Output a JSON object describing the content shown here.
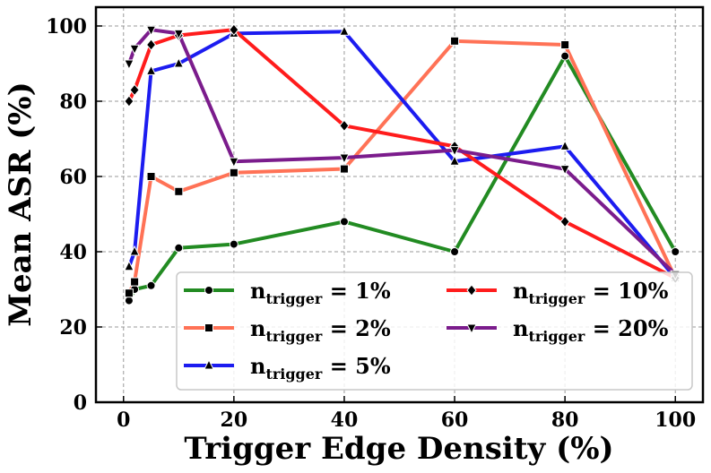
{
  "chart_data": {
    "type": "line",
    "title": "",
    "xlabel": "Trigger Edge Density (%)",
    "ylabel": "Mean ASR (%)",
    "xlim": [
      -5,
      105
    ],
    "ylim": [
      0,
      105
    ],
    "xticks": [
      "0",
      "20",
      "40",
      "60",
      "80",
      "100"
    ],
    "yticks": [
      "0",
      "20",
      "40",
      "60",
      "80",
      "100"
    ],
    "grid": true,
    "legend_position": "lower-right",
    "x": [
      1,
      2,
      5,
      10,
      20,
      40,
      60,
      80,
      100
    ],
    "series": [
      {
        "name_main": "n",
        "name_sub": "trigger",
        "name_tail": " = 1%",
        "color": "#228B22",
        "marker": "circle",
        "values": [
          27,
          30,
          31,
          41,
          42,
          48,
          40,
          92,
          40
        ]
      },
      {
        "name_main": "n",
        "name_sub": "trigger",
        "name_tail": " = 2%",
        "color": "#FF7256",
        "marker": "square",
        "values": [
          29,
          32,
          60,
          56,
          61,
          62,
          96,
          95,
          33
        ]
      },
      {
        "name_main": "n",
        "name_sub": "trigger",
        "name_tail": " = 5%",
        "color": "#1C1CF0",
        "marker": "triangle-up",
        "values": [
          36,
          40,
          88,
          90,
          98,
          98.5,
          64,
          68,
          33
        ]
      },
      {
        "name_main": "n",
        "name_sub": "trigger",
        "name_tail": " = 10%",
        "color": "#FF1C1C",
        "marker": "diamond",
        "values": [
          80,
          83,
          95,
          97.5,
          99,
          73.5,
          68,
          48,
          33
        ]
      },
      {
        "name_main": "n",
        "name_sub": "trigger",
        "name_tail": " = 20%",
        "color": "#7B1C8C",
        "marker": "triangle-down",
        "values": [
          90,
          94,
          99,
          98,
          64,
          65,
          67,
          62,
          34
        ]
      }
    ]
  }
}
